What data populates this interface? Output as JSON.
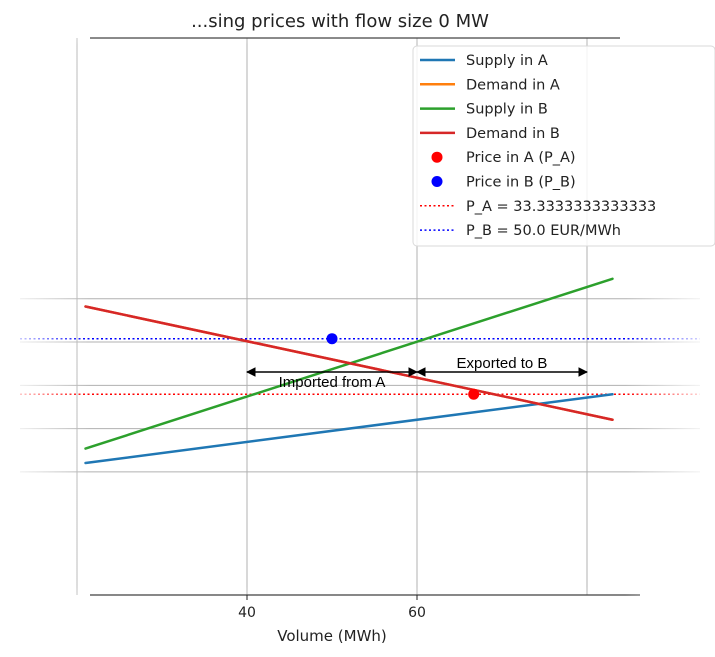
{
  "chart_data": {
    "type": "line",
    "title": "...sing prices with flow size 0 MW",
    "xlabel": "Volume (MWh)",
    "ylabel": "",
    "xlim": [
      20,
      83
    ],
    "ylim": [
      5,
      70
    ],
    "xticks": [
      40,
      60
    ],
    "xtick_labels": [
      "40",
      "60"
    ],
    "yticks": [
      10,
      23,
      36,
      49,
      62
    ],
    "grid": true,
    "legend_position": "top-right",
    "series": [
      {
        "name": "Supply in A",
        "kind": "line",
        "color": "#1f77b4",
        "x": [
          21,
          83
        ],
        "y": [
          12.67,
          33.33
        ]
      },
      {
        "name": "Demand in A",
        "kind": "line",
        "color": "#ff7f0e",
        "x": [
          21,
          83
        ],
        "y": [
          59.67,
          25.67
        ]
      },
      {
        "name": "Supply in B",
        "kind": "line",
        "color": "#2ca02c",
        "x": [
          21,
          83
        ],
        "y": [
          17,
          68
        ]
      },
      {
        "name": "Demand in B",
        "kind": "line",
        "color": "#d62728",
        "x": [
          21,
          83
        ],
        "y": [
          59.67,
          25.67
        ]
      },
      {
        "name": "Price in A (P_A)",
        "kind": "point",
        "color": "#ff0000",
        "x": [
          66.67
        ],
        "y": [
          33.33
        ]
      },
      {
        "name": "Price in B (P_B)",
        "kind": "point",
        "color": "#0000ff",
        "x": [
          50
        ],
        "y": [
          50
        ]
      }
    ],
    "hlines": [
      {
        "name": "P_A = 33.3333333333333",
        "color": "#ff0000",
        "y": 33.33
      },
      {
        "name": "P_B = 50.0 EUR/MWh",
        "color": "#0000ff",
        "y": 50
      }
    ],
    "annotations": [
      {
        "text": "Imported from A",
        "x_from": 60,
        "x_to": 40,
        "y": 40
      },
      {
        "text": "Exported to B",
        "x_from": 60,
        "x_to": 80,
        "y": 40
      }
    ]
  }
}
